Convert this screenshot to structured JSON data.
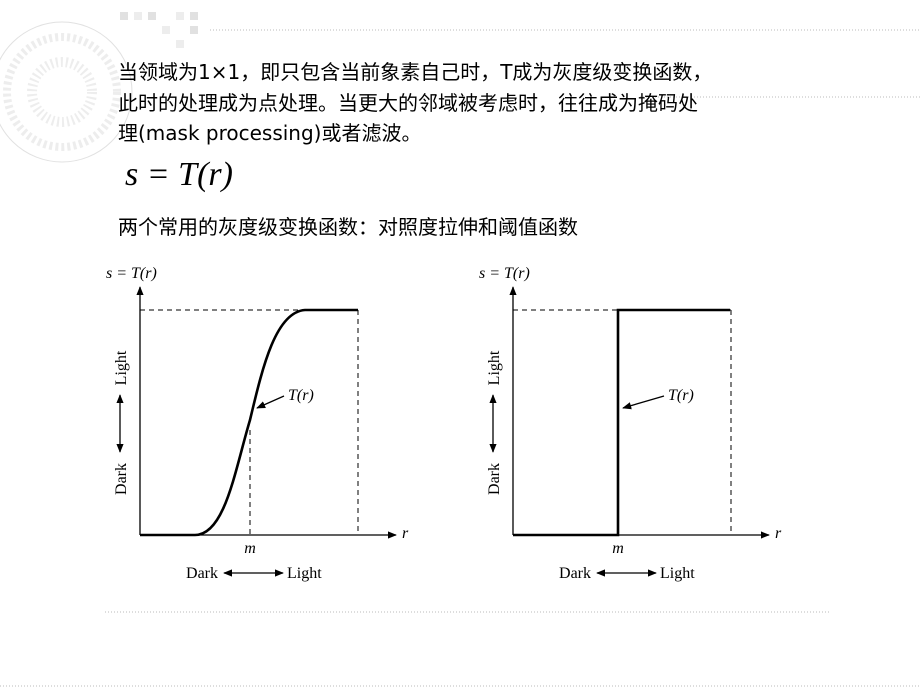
{
  "paragraph": {
    "lines": [
      "当领域为1×1，即只包含当前象素自己时，T成为灰度级变换函数，",
      "此时的处理成为点处理。当更大的邻域被考虑时，往往成为掩码处",
      "理(mask processing)或者滤波。"
    ]
  },
  "formula": "s = T(r)",
  "subtitle": "两个常用的灰度级变换函数：对照度拉伸和阈值函数",
  "figures": [
    {
      "y_axis_label": "s = T(r)",
      "y_light": "Light",
      "y_dark": "Dark",
      "curve_label": "T(r)",
      "x_axis_label": "r",
      "x_marker": "m",
      "x_dark": "Dark",
      "x_light": "Light"
    },
    {
      "y_axis_label": "s = T(r)",
      "y_light": "Light",
      "y_dark": "Dark",
      "curve_label": "T(r)",
      "x_axis_label": "r",
      "x_marker": "m",
      "x_dark": "Dark",
      "x_light": "Light"
    }
  ]
}
